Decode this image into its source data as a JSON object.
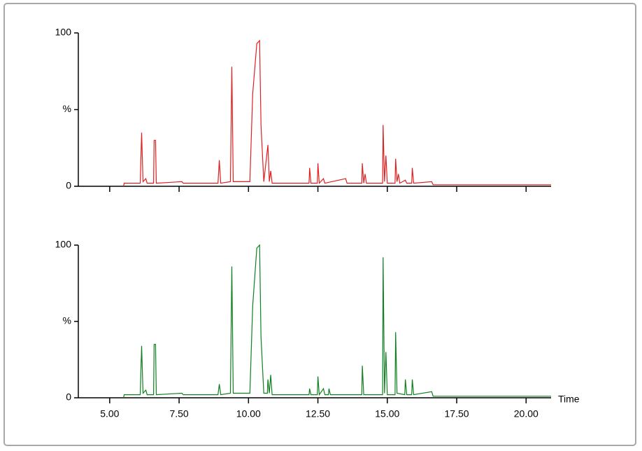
{
  "chart_data": [
    {
      "type": "line",
      "x": [
        5.5,
        5.52,
        6.1,
        6.15,
        6.2,
        6.3,
        6.35,
        6.58,
        6.6,
        6.65,
        6.68,
        7.6,
        7.65,
        8.9,
        8.95,
        9.0,
        9.35,
        9.4,
        9.45,
        10.05,
        10.15,
        10.3,
        10.4,
        10.45,
        10.55,
        10.7,
        10.75,
        10.8,
        10.85,
        12.18,
        12.2,
        12.25,
        12.48,
        12.5,
        12.55,
        12.7,
        12.75,
        13.5,
        13.55,
        14.08,
        14.1,
        14.15,
        14.2,
        14.25,
        14.83,
        14.85,
        14.9,
        14.95,
        15.0,
        15.28,
        15.3,
        15.35,
        15.4,
        15.45,
        15.65,
        15.7,
        15.88,
        15.9,
        15.95,
        16.6,
        16.65,
        18.0,
        20.9
      ],
      "series": [
        {
          "color": "#e02020",
          "values": [
            0,
            2,
            2,
            35,
            3,
            5,
            2,
            2,
            30,
            30,
            2,
            3,
            2,
            2,
            17,
            2,
            3,
            78,
            3,
            3,
            60,
            93,
            95,
            40,
            3,
            27,
            3,
            10,
            2,
            2,
            12,
            2,
            2,
            15,
            2,
            5,
            2,
            5,
            2,
            2,
            15,
            2,
            8,
            2,
            2,
            40,
            3,
            20,
            2,
            2,
            18,
            3,
            8,
            2,
            4,
            2,
            2,
            12,
            2,
            3,
            1,
            1,
            1
          ]
        }
      ],
      "ylim": [
        0,
        100
      ],
      "yticks": [
        0,
        {
          "value": 50,
          "label": "%"
        },
        100
      ]
    },
    {
      "type": "line",
      "x": [
        5.5,
        5.52,
        6.1,
        6.15,
        6.2,
        6.3,
        6.35,
        6.58,
        6.6,
        6.65,
        6.68,
        7.6,
        7.65,
        8.9,
        8.95,
        9.0,
        9.35,
        9.4,
        9.45,
        10.05,
        10.15,
        10.3,
        10.4,
        10.45,
        10.55,
        10.68,
        10.7,
        10.75,
        10.8,
        10.85,
        12.18,
        12.2,
        12.25,
        12.48,
        12.5,
        12.55,
        12.7,
        12.75,
        12.88,
        12.9,
        12.95,
        14.08,
        14.1,
        14.15,
        14.83,
        14.85,
        14.9,
        14.95,
        15.0,
        15.28,
        15.3,
        15.35,
        15.63,
        15.65,
        15.7,
        15.88,
        15.9,
        15.95,
        16.6,
        16.65,
        18.0,
        20.9
      ],
      "series": [
        {
          "color": "#108020",
          "values": [
            0,
            2,
            2,
            34,
            3,
            5,
            2,
            2,
            35,
            35,
            2,
            3,
            2,
            2,
            9,
            2,
            3,
            86,
            3,
            3,
            60,
            98,
            100,
            40,
            3,
            3,
            12,
            3,
            15,
            2,
            2,
            6,
            2,
            2,
            14,
            2,
            6,
            2,
            2,
            6,
            2,
            2,
            21,
            2,
            2,
            92,
            3,
            30,
            2,
            2,
            43,
            3,
            2,
            12,
            2,
            2,
            12,
            2,
            4,
            1,
            1,
            1
          ]
        }
      ],
      "ylim": [
        0,
        100
      ],
      "yticks": [
        0,
        {
          "value": 50,
          "label": "%"
        },
        100
      ],
      "xlabel": "Time",
      "xlim": [
        3.87,
        20.9
      ],
      "xticks": [
        {
          "value": 5,
          "label": "5.00"
        },
        {
          "value": 7.5,
          "label": "7.50"
        },
        {
          "value": 10,
          "label": "10.00"
        },
        {
          "value": 12.5,
          "label": "12.50"
        },
        {
          "value": 15,
          "label": "15.00"
        },
        {
          "value": 17.5,
          "label": "17.50"
        },
        {
          "value": 20,
          "label": "20.00"
        }
      ]
    }
  ]
}
